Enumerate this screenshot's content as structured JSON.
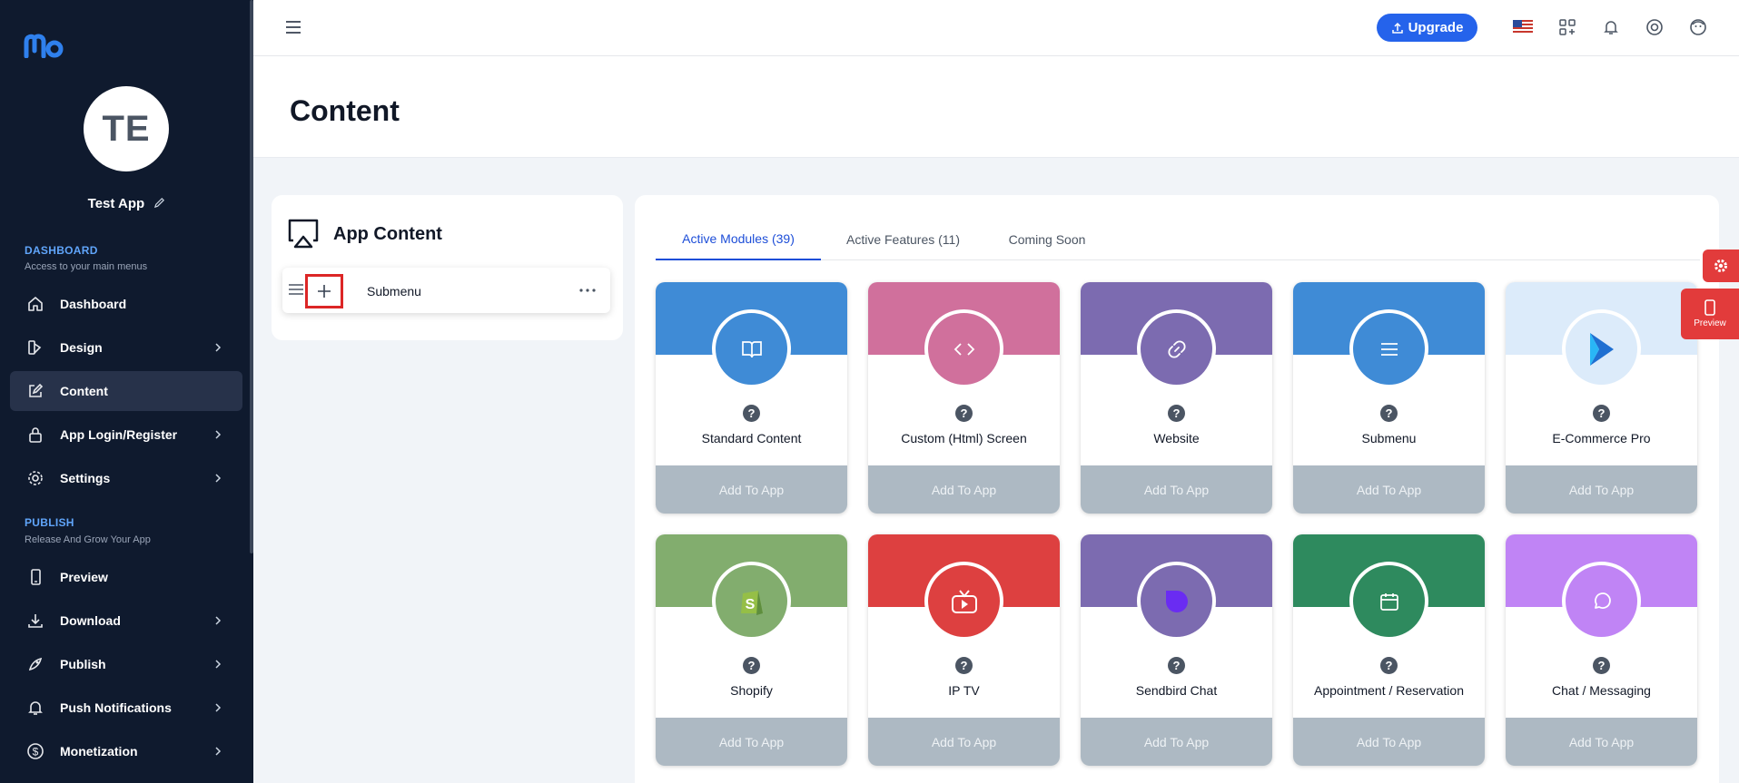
{
  "app": {
    "avatar_initials": "TE",
    "name": "Test App"
  },
  "sidebar": {
    "dashboard_section": {
      "title": "DASHBOARD",
      "subtitle": "Access to your main menus"
    },
    "publish_section": {
      "title": "PUBLISH",
      "subtitle": "Release And Grow Your App"
    },
    "items": [
      {
        "label": "Dashboard",
        "icon": "home-icon",
        "chevron": false,
        "active": false
      },
      {
        "label": "Design",
        "icon": "palette-icon",
        "chevron": true,
        "active": false
      },
      {
        "label": "Content",
        "icon": "edit-icon",
        "chevron": false,
        "active": true
      },
      {
        "label": "App Login/Register",
        "icon": "lock-icon",
        "chevron": true,
        "active": false
      },
      {
        "label": "Settings",
        "icon": "gear-icon",
        "chevron": true,
        "active": false
      },
      {
        "label": "Preview",
        "icon": "phone-icon",
        "chevron": false,
        "active": false
      },
      {
        "label": "Download",
        "icon": "download-icon",
        "chevron": true,
        "active": false
      },
      {
        "label": "Publish",
        "icon": "rocket-icon",
        "chevron": true,
        "active": false
      },
      {
        "label": "Push Notifications",
        "icon": "bell-icon",
        "chevron": true,
        "active": false
      },
      {
        "label": "Monetization",
        "icon": "dollar-icon",
        "chevron": true,
        "active": false
      }
    ]
  },
  "topbar": {
    "upgrade_label": "Upgrade",
    "icons": [
      "us-flag-icon",
      "apps-add-icon",
      "bell-icon",
      "support-icon",
      "profile-icon"
    ]
  },
  "page": {
    "title": "Content"
  },
  "app_content": {
    "title": "App Content",
    "items": [
      {
        "label": "Submenu"
      }
    ]
  },
  "tabs": [
    {
      "label": "Active Modules (39)",
      "active": true
    },
    {
      "label": "Active Features (11)",
      "active": false
    },
    {
      "label": "Coming Soon",
      "active": false
    }
  ],
  "modules": [
    {
      "name": "Standard Content",
      "icon": "book-icon",
      "band": "#3f8bd6",
      "circle": "#3f8bd6",
      "add_label": "Add To App"
    },
    {
      "name": "Custom (Html) Screen",
      "icon": "code-icon",
      "band": "#d0709c",
      "circle": "#d0709c",
      "add_label": "Add To App"
    },
    {
      "name": "Website",
      "icon": "link-icon",
      "band": "#7c6bb0",
      "circle": "#7c6bb0",
      "add_label": "Add To App"
    },
    {
      "name": "Submenu",
      "icon": "list-icon",
      "band": "#3f8bd6",
      "circle": "#3f8bd6",
      "add_label": "Add To App"
    },
    {
      "name": "E-Commerce Pro",
      "icon": "ecommerce-logo-icon",
      "band": "#dcebfa",
      "circle": "#dcebfa",
      "add_label": "Add To App"
    },
    {
      "name": "Shopify",
      "icon": "shopify-icon",
      "band": "#82ad6e",
      "circle": "#82ad6e",
      "add_label": "Add To App"
    },
    {
      "name": "IP TV",
      "icon": "tv-icon",
      "band": "#dd4040",
      "circle": "#dd4040",
      "add_label": "Add To App"
    },
    {
      "name": "Sendbird Chat",
      "icon": "sendbird-icon",
      "band": "#7c6bb0",
      "circle": "#7c6bb0",
      "add_label": "Add To App"
    },
    {
      "name": "Appointment / Reservation",
      "icon": "calendar-icon",
      "band": "#2e8a5e",
      "circle": "#2e8a5e",
      "add_label": "Add To App"
    },
    {
      "name": "Chat / Messaging",
      "icon": "chat-icon",
      "band": "#c084f5",
      "circle": "#c084f5",
      "add_label": "Add To App"
    }
  ],
  "floating": {
    "preview_label": "Preview"
  }
}
